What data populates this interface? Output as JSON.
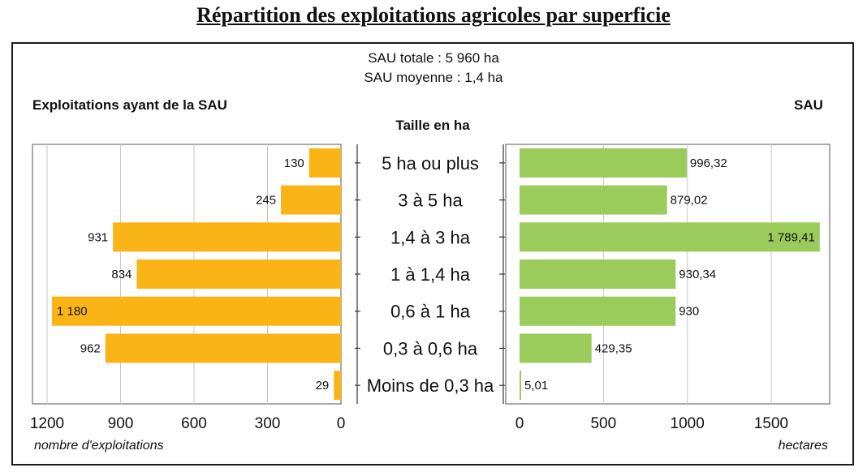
{
  "title": "Répartition des exploitations agricoles par superficie",
  "summary": {
    "total": "SAU totale : 5 960 ha",
    "mean": "SAU moyenne : 1,4 ha"
  },
  "left_heading": "Exploitations ayant de la SAU",
  "center_heading": "Taille en ha",
  "right_heading": "SAU",
  "colors": {
    "left_bars": "#fbb416",
    "right_bars": "#9bcb5a",
    "grid": "#c8c8c8"
  },
  "chart_data": [
    {
      "type": "bar",
      "orientation": "horizontal",
      "direction": "right-to-left",
      "categories": [
        "5 ha ou plus",
        "3 à 5 ha",
        "1,4 à 3 ha",
        "1 à 1,4 ha",
        "0,6 à 1 ha",
        "0,3 à 0,6 ha",
        "Moins de 0,3 ha"
      ],
      "values": [
        130,
        245,
        931,
        834,
        1180,
        962,
        29
      ],
      "value_labels": [
        "130",
        "245",
        "931",
        "834",
        "1 180",
        "962",
        "29"
      ],
      "xlabel": "nombre d'exploitations",
      "xlim": [
        0,
        1200
      ],
      "xticks": [
        1200,
        900,
        600,
        300,
        0
      ],
      "grid": true
    },
    {
      "type": "bar",
      "orientation": "horizontal",
      "categories": [
        "5 ha ou plus",
        "3 à 5 ha",
        "1,4 à 3 ha",
        "1 à 1,4 ha",
        "0,6 à 1 ha",
        "0,3 à 0,6 ha",
        "Moins de 0,3 ha"
      ],
      "values": [
        996.32,
        879.02,
        1789.41,
        930.34,
        930,
        429.35,
        5.01
      ],
      "value_labels": [
        "996,32",
        "879,02",
        "1 789,41",
        "930,34",
        "930",
        "429,35",
        "5,01"
      ],
      "xlabel": "hectares",
      "xlim": [
        0,
        1800
      ],
      "xticks": [
        0,
        500,
        1000,
        1500
      ],
      "grid": true
    }
  ]
}
